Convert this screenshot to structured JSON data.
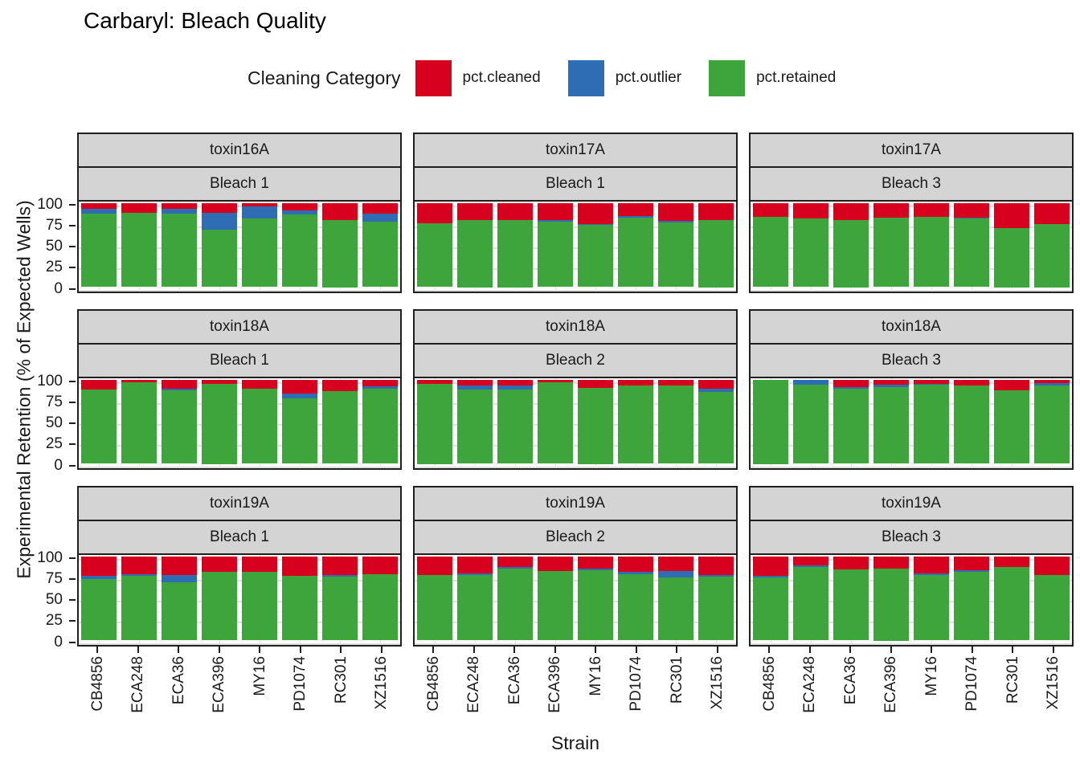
{
  "title": "Carbaryl: Bleach Quality",
  "legend": {
    "title": "Cleaning Category",
    "items": [
      {
        "label": "pct.cleaned",
        "color": "#d7001f"
      },
      {
        "label": "pct.outlier",
        "color": "#2e6db4"
      },
      {
        "label": "pct.retained",
        "color": "#3ea43c"
      }
    ]
  },
  "axes": {
    "y_title": "Experimental Retention (% of Expected Wells)",
    "x_title": "Strain",
    "y_ticks": [
      100,
      75,
      50,
      25,
      0
    ],
    "x_categories": [
      "CB4856",
      "ECA248",
      "ECA36",
      "ECA396",
      "MY16",
      "PD1074",
      "RC301",
      "XZ1516"
    ]
  },
  "style": {
    "strip_background": "#d4d4d4",
    "panel_border": "#1f1f1f",
    "grid_major": "#e0e0e0",
    "grid_minor": "#efefef"
  },
  "chart_data": {
    "type": "bar",
    "stacked": true,
    "units": "percent of expected wells",
    "ylim": [
      0,
      100
    ],
    "grid": "on",
    "legend_position": "top",
    "categories": [
      "CB4856",
      "ECA248",
      "ECA36",
      "ECA396",
      "MY16",
      "PD1074",
      "RC301",
      "XZ1516"
    ],
    "stack_order_top_to_bottom": [
      "pct.cleaned",
      "pct.outlier",
      "pct.retained"
    ],
    "facets": [
      {
        "toxin": "toxin16A",
        "bleach": "Bleach 1",
        "series": {
          "pct.retained": [
            87,
            88,
            87,
            68,
            81,
            86,
            80,
            78
          ],
          "pct.outlier": [
            6,
            0,
            6,
            20,
            15,
            5,
            0,
            9
          ],
          "pct.cleaned": [
            7,
            12,
            7,
            12,
            4,
            9,
            20,
            13
          ]
        }
      },
      {
        "toxin": "toxin17A",
        "bleach": "Bleach 1",
        "series": {
          "pct.retained": [
            76,
            80,
            80,
            78,
            74,
            82,
            77,
            80
          ],
          "pct.outlier": [
            0,
            0,
            0,
            2,
            1,
            2,
            2,
            0
          ],
          "pct.cleaned": [
            24,
            20,
            20,
            20,
            25,
            16,
            21,
            20
          ]
        }
      },
      {
        "toxin": "toxin17A",
        "bleach": "Bleach 3",
        "series": {
          "pct.retained": [
            83,
            81,
            80,
            82,
            83,
            81,
            70,
            75
          ],
          "pct.outlier": [
            0,
            0,
            0,
            0,
            0,
            1,
            0,
            0
          ],
          "pct.cleaned": [
            17,
            19,
            20,
            18,
            17,
            18,
            30,
            25
          ]
        }
      },
      {
        "toxin": "toxin18A",
        "bleach": "Bleach 1",
        "series": {
          "pct.retained": [
            88,
            97,
            87,
            95,
            89,
            78,
            86,
            89
          ],
          "pct.outlier": [
            0,
            0,
            2,
            0,
            0,
            5,
            0,
            3
          ],
          "pct.cleaned": [
            12,
            3,
            11,
            5,
            11,
            17,
            14,
            8
          ]
        }
      },
      {
        "toxin": "toxin18A",
        "bleach": "Bleach 2",
        "series": {
          "pct.retained": [
            95,
            88,
            88,
            97,
            90,
            93,
            93,
            85
          ],
          "pct.outlier": [
            0,
            5,
            5,
            0,
            0,
            0,
            0,
            4
          ],
          "pct.cleaned": [
            5,
            7,
            7,
            3,
            10,
            7,
            7,
            11
          ]
        }
      },
      {
        "toxin": "toxin18A",
        "bleach": "Bleach 3",
        "series": {
          "pct.retained": [
            100,
            94,
            89,
            91,
            94,
            93,
            87,
            93
          ],
          "pct.outlier": [
            0,
            6,
            2,
            3,
            1,
            0,
            0,
            3
          ],
          "pct.cleaned": [
            0,
            0,
            9,
            6,
            5,
            7,
            13,
            4
          ]
        }
      },
      {
        "toxin": "toxin19A",
        "bleach": "Bleach 1",
        "series": {
          "pct.retained": [
            73,
            77,
            69,
            81,
            81,
            77,
            76,
            79
          ],
          "pct.outlier": [
            4,
            2,
            9,
            0,
            0,
            0,
            2,
            0
          ],
          "pct.cleaned": [
            23,
            21,
            22,
            19,
            19,
            23,
            22,
            21
          ]
        }
      },
      {
        "toxin": "toxin19A",
        "bleach": "Bleach 2",
        "series": {
          "pct.retained": [
            78,
            78,
            85,
            82,
            83,
            79,
            75,
            76
          ],
          "pct.outlier": [
            0,
            2,
            2,
            0,
            2,
            2,
            7,
            2
          ],
          "pct.cleaned": [
            22,
            20,
            13,
            18,
            15,
            19,
            18,
            22
          ]
        }
      },
      {
        "toxin": "toxin19A",
        "bleach": "Bleach 3",
        "series": {
          "pct.retained": [
            75,
            87,
            84,
            85,
            78,
            81,
            87,
            78
          ],
          "pct.outlier": [
            2,
            2,
            0,
            0,
            2,
            2,
            0,
            0
          ],
          "pct.cleaned": [
            23,
            11,
            16,
            15,
            20,
            17,
            13,
            22
          ]
        }
      }
    ]
  }
}
